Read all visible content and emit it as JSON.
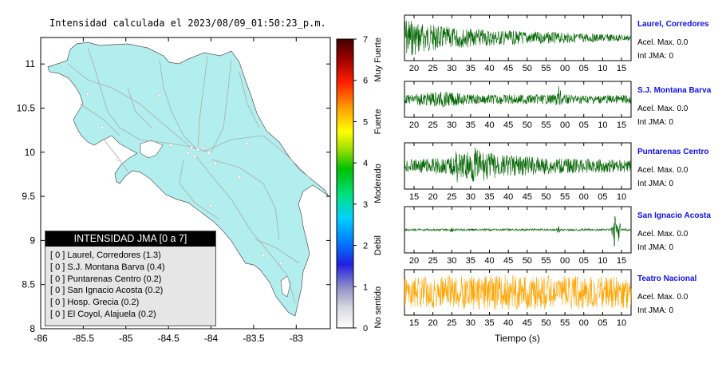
{
  "map": {
    "title": "Intensidad calculada el 2023/08/09_01:50:23_p.m.",
    "x_ticks": [
      "-86",
      "-85.5",
      "-85",
      "-84.5",
      "-84",
      "-83.5",
      "-83"
    ],
    "y_ticks": [
      "11",
      "10.5",
      "10",
      "9.5",
      "9",
      "8.5",
      "8"
    ],
    "land_color": "#b2eeee",
    "road_color": "#aaaaaa"
  },
  "colorbar": {
    "ticks": [
      "0",
      "1",
      "2",
      "3",
      "4",
      "5",
      "6",
      "7"
    ],
    "labels": [
      "No sentido",
      "Debil",
      "Moderado",
      "Fuerte",
      "Muy Fuerte"
    ]
  },
  "legend": {
    "title": "INTENSIDAD JMA [0 a 7]",
    "items": [
      "[ 0 ]  Laurel, Corredores (1.3)",
      "[ 0 ]  S.J. Montana Barva (0.4)",
      "[ 0 ]  Puntarenas Centro (0.2)",
      "[ 0 ]  San Ignacio Acosta (0.2)",
      "[ 0 ]  Hosp. Grecia (0.2)",
      "[ 0 ]  El Coyol, Alajuela (0.2)"
    ]
  },
  "stations": [
    {
      "name": "Laurel, Corredores",
      "accel": "Acel. Max. 0.0",
      "int": "Int JMA: 0",
      "color": "#006400",
      "ticks": [
        "20",
        "25",
        "30",
        "35",
        "40",
        "45",
        "50",
        "55",
        "00",
        "05",
        "10",
        "15"
      ]
    },
    {
      "name": "S.J. Montana Barva",
      "accel": "Acel. Max. 0.0",
      "int": "Int JMA: 0",
      "color": "#006400",
      "ticks": [
        "20",
        "25",
        "30",
        "35",
        "40",
        "45",
        "50",
        "55",
        "00",
        "05",
        "10",
        "15"
      ]
    },
    {
      "name": "Puntarenas Centro",
      "accel": "Acel. Max. 0.0",
      "int": "Int JMA: 0",
      "color": "#006400",
      "ticks": [
        "15",
        "20",
        "25",
        "30",
        "35",
        "40",
        "45",
        "50",
        "55",
        "00",
        "05",
        "10"
      ]
    },
    {
      "name": "San Ignacio Acosta",
      "accel": "Acel. Max. 0.0",
      "int": "Int JMA: 0",
      "color": "#006400",
      "ticks": [
        "20",
        "25",
        "30",
        "35",
        "40",
        "45",
        "50",
        "55",
        "00",
        "05",
        "10",
        "15"
      ]
    },
    {
      "name": "Teatro Nacional",
      "accel": "Acel. Max. 0.0",
      "int": "Int JMA: 0",
      "color": "#ffa500",
      "ticks": [
        "15",
        "20",
        "25",
        "30",
        "35",
        "40",
        "45",
        "50",
        "55",
        "00",
        "05",
        "10"
      ]
    }
  ],
  "xlabel": "Tiempo (s)",
  "chart_data": {
    "type": "line",
    "title": "Intensidad calculada el 2023/08/09_01:50:23_p.m.",
    "xlabel": "Tiempo (s)",
    "series": [
      {
        "name": "Laurel, Corredores",
        "jma_intensity": 0,
        "calc_intensity": 1.3,
        "max_accel": 0.0
      },
      {
        "name": "S.J. Montana Barva",
        "jma_intensity": 0,
        "calc_intensity": 0.4,
        "max_accel": 0.0
      },
      {
        "name": "Puntarenas Centro",
        "jma_intensity": 0,
        "calc_intensity": 0.2,
        "max_accel": 0.0
      },
      {
        "name": "San Ignacio Acosta",
        "jma_intensity": 0,
        "calc_intensity": 0.2,
        "max_accel": 0.0
      },
      {
        "name": "Hosp. Grecia",
        "calc_intensity": 0.2
      },
      {
        "name": "El Coyol, Alajuela",
        "calc_intensity": 0.2
      },
      {
        "name": "Teatro Nacional",
        "jma_intensity": 0,
        "max_accel": 0.0
      }
    ],
    "map_xlim": [
      -86,
      -82.6
    ],
    "map_ylim": [
      8,
      11.3
    ],
    "colorbar_range": [
      0,
      7
    ]
  }
}
